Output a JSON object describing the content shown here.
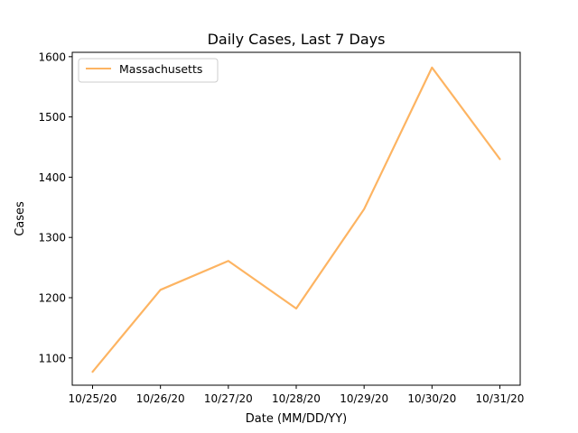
{
  "chart_data": {
    "type": "line",
    "title": "Daily Cases, Last 7 Days",
    "xlabel": "Date (MM/DD/YY)",
    "ylabel": "Cases",
    "categories": [
      "10/25/20",
      "10/26/20",
      "10/27/20",
      "10/28/20",
      "10/29/20",
      "10/30/20",
      "10/31/20"
    ],
    "series": [
      {
        "name": "Massachusetts",
        "color": "#fdb462",
        "values": [
          1077,
          1213,
          1261,
          1182,
          1347,
          1582,
          1430
        ]
      }
    ],
    "ylim": [
      1054.75,
      1607.25
    ],
    "yticks": [
      1100,
      1200,
      1300,
      1400,
      1500,
      1600
    ],
    "grid": false,
    "legend_position": "top-left"
  }
}
